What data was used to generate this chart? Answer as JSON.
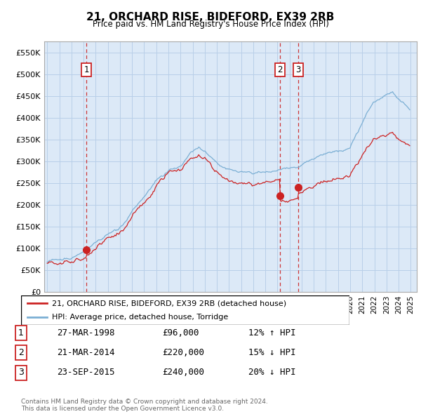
{
  "title": "21, ORCHARD RISE, BIDEFORD, EX39 2RB",
  "subtitle": "Price paid vs. HM Land Registry's House Price Index (HPI)",
  "ylim": [
    0,
    575000
  ],
  "ytick_labels": [
    "£0",
    "£50K",
    "£100K",
    "£150K",
    "£200K",
    "£250K",
    "£300K",
    "£350K",
    "£400K",
    "£450K",
    "£500K",
    "£550K"
  ],
  "hpi_color": "#7bafd4",
  "sale_color": "#cc2222",
  "vline_color": "#cc2222",
  "grid_color": "#b8cfe8",
  "background_color": "#dce9f7",
  "transactions": [
    {
      "date": 1998.23,
      "price": 96000,
      "label": "1"
    },
    {
      "date": 2014.22,
      "price": 220000,
      "label": "2"
    },
    {
      "date": 2015.73,
      "price": 240000,
      "label": "3"
    }
  ],
  "legend_entries": [
    "21, ORCHARD RISE, BIDEFORD, EX39 2RB (detached house)",
    "HPI: Average price, detached house, Torridge"
  ],
  "table_rows": [
    [
      "1",
      "27-MAR-1998",
      "£96,000",
      "12% ↑ HPI"
    ],
    [
      "2",
      "21-MAR-2014",
      "£220,000",
      "15% ↓ HPI"
    ],
    [
      "3",
      "23-SEP-2015",
      "£240,000",
      "20% ↓ HPI"
    ]
  ],
  "footer": "Contains HM Land Registry data © Crown copyright and database right 2024.\nThis data is licensed under the Open Government Licence v3.0."
}
